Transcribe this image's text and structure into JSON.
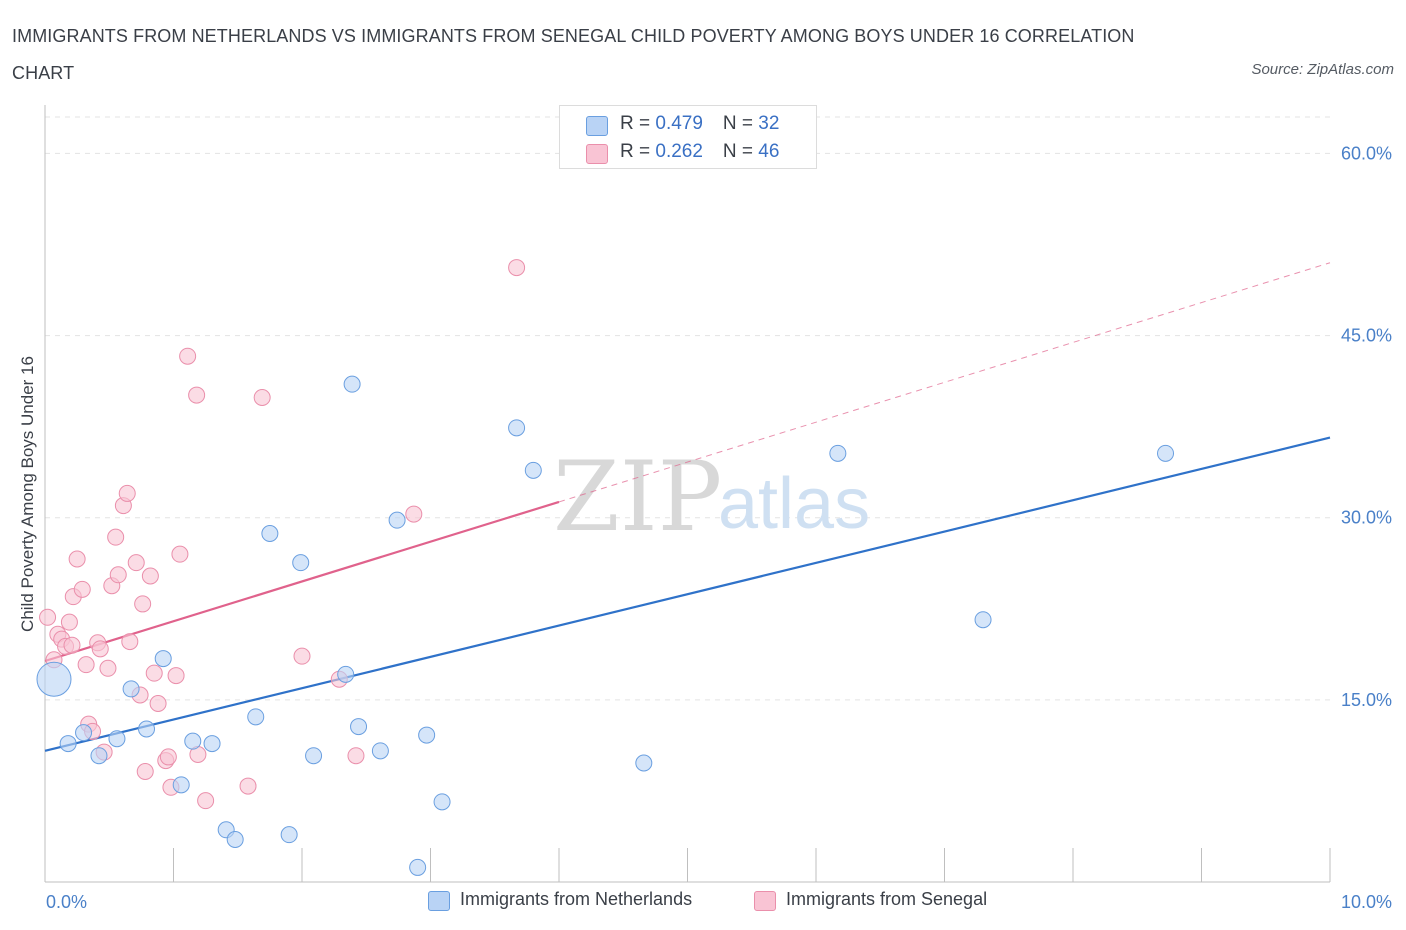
{
  "title": "IMMIGRANTS FROM NETHERLANDS VS IMMIGRANTS FROM SENEGAL CHILD POVERTY AMONG BOYS UNDER 16 CORRELATION CHART",
  "source": "Source: ZipAtlas.com",
  "watermark": {
    "zip": "ZIP",
    "atlas": "atlas"
  },
  "colors": {
    "netherlands_fill": "#b9d3f5",
    "netherlands_stroke": "#6a9fe0",
    "netherlands_line": "#2f72c9",
    "senegal_fill": "#f9c4d4",
    "senegal_stroke": "#ea8fab",
    "senegal_line": "#e0628c",
    "grid": "#e3e3e3",
    "axis_text": "#4a80c8"
  },
  "legend": {
    "rows": [
      {
        "r_label": "R = ",
        "r_value": "0.479",
        "n_label": "N = ",
        "n_value": "32"
      },
      {
        "r_label": "R = ",
        "r_value": "0.262",
        "n_label": "N = ",
        "n_value": "46"
      }
    ]
  },
  "bottom_legend": [
    "Immigrants from Netherlands",
    "Immigrants from Senegal"
  ],
  "chart_data": {
    "type": "scatter",
    "ylabel": "Child Poverty Among Boys Under 16",
    "xlabel": "",
    "xlim": [
      0,
      10
    ],
    "ylim": [
      0,
      63
    ],
    "x_tick_labels": [
      "0.0%",
      "10.0%"
    ],
    "y_ticks": [
      15,
      30,
      45,
      60
    ],
    "y_tick_labels": [
      "15.0%",
      "30.0%",
      "45.0%",
      "60.0%"
    ],
    "grid": true,
    "legend_position": "top-center",
    "series": [
      {
        "name": "Immigrants from Netherlands",
        "R": 0.479,
        "N": 32,
        "trend": {
          "x": [
            0,
            10
          ],
          "y": [
            10.8,
            36.6
          ],
          "style": "solid"
        },
        "points": [
          {
            "x": 0.07,
            "y": 16.7,
            "size": "large"
          },
          {
            "x": 0.18,
            "y": 11.4
          },
          {
            "x": 0.3,
            "y": 12.3
          },
          {
            "x": 0.42,
            "y": 10.4
          },
          {
            "x": 0.56,
            "y": 11.8
          },
          {
            "x": 0.67,
            "y": 15.9
          },
          {
            "x": 0.79,
            "y": 12.6
          },
          {
            "x": 0.92,
            "y": 18.4
          },
          {
            "x": 1.06,
            "y": 8.0
          },
          {
            "x": 1.15,
            "y": 11.6
          },
          {
            "x": 1.3,
            "y": 11.4
          },
          {
            "x": 1.41,
            "y": 4.3
          },
          {
            "x": 1.48,
            "y": 3.5
          },
          {
            "x": 1.64,
            "y": 13.6
          },
          {
            "x": 1.75,
            "y": 28.7
          },
          {
            "x": 1.9,
            "y": 3.9
          },
          {
            "x": 1.99,
            "y": 26.3
          },
          {
            "x": 2.09,
            "y": 10.4
          },
          {
            "x": 2.34,
            "y": 17.1
          },
          {
            "x": 2.39,
            "y": 41.0
          },
          {
            "x": 2.44,
            "y": 12.8
          },
          {
            "x": 2.61,
            "y": 10.8
          },
          {
            "x": 2.74,
            "y": 29.8
          },
          {
            "x": 2.9,
            "y": 1.2
          },
          {
            "x": 2.97,
            "y": 12.1
          },
          {
            "x": 3.09,
            "y": 6.6
          },
          {
            "x": 3.67,
            "y": 37.4
          },
          {
            "x": 3.8,
            "y": 33.9
          },
          {
            "x": 4.66,
            "y": 9.8
          },
          {
            "x": 6.17,
            "y": 35.3
          },
          {
            "x": 7.3,
            "y": 21.6
          },
          {
            "x": 8.72,
            "y": 35.3
          }
        ]
      },
      {
        "name": "Immigrants from Senegal",
        "R": 0.262,
        "N": 46,
        "trend": {
          "x": [
            0,
            4.0
          ],
          "y": [
            18.2,
            31.3
          ],
          "style": "solid",
          "extension": {
            "x": [
              4.0,
              10
            ],
            "y": [
              31.3,
              51.0
            ],
            "style": "dashed"
          }
        },
        "points": [
          {
            "x": 0.02,
            "y": 21.8
          },
          {
            "x": 0.07,
            "y": 18.3
          },
          {
            "x": 0.1,
            "y": 20.4
          },
          {
            "x": 0.13,
            "y": 20.0
          },
          {
            "x": 0.16,
            "y": 19.4
          },
          {
            "x": 0.19,
            "y": 21.4
          },
          {
            "x": 0.21,
            "y": 19.5
          },
          {
            "x": 0.22,
            "y": 23.5
          },
          {
            "x": 0.25,
            "y": 26.6
          },
          {
            "x": 0.29,
            "y": 24.1
          },
          {
            "x": 0.32,
            "y": 17.9
          },
          {
            "x": 0.34,
            "y": 13.0
          },
          {
            "x": 0.37,
            "y": 12.4
          },
          {
            "x": 0.41,
            "y": 19.7
          },
          {
            "x": 0.43,
            "y": 19.2
          },
          {
            "x": 0.46,
            "y": 10.7
          },
          {
            "x": 0.49,
            "y": 17.6
          },
          {
            "x": 0.52,
            "y": 24.4
          },
          {
            "x": 0.55,
            "y": 28.4
          },
          {
            "x": 0.57,
            "y": 25.3
          },
          {
            "x": 0.61,
            "y": 31.0
          },
          {
            "x": 0.64,
            "y": 32.0
          },
          {
            "x": 0.66,
            "y": 19.8
          },
          {
            "x": 0.71,
            "y": 26.3
          },
          {
            "x": 0.74,
            "y": 15.4
          },
          {
            "x": 0.76,
            "y": 22.9
          },
          {
            "x": 0.78,
            "y": 9.1
          },
          {
            "x": 0.82,
            "y": 25.2
          },
          {
            "x": 0.85,
            "y": 17.2
          },
          {
            "x": 0.88,
            "y": 14.7
          },
          {
            "x": 0.94,
            "y": 10.0
          },
          {
            "x": 0.96,
            "y": 10.3
          },
          {
            "x": 0.98,
            "y": 7.8
          },
          {
            "x": 1.02,
            "y": 17.0
          },
          {
            "x": 1.05,
            "y": 27.0
          },
          {
            "x": 1.11,
            "y": 43.3
          },
          {
            "x": 1.18,
            "y": 40.1
          },
          {
            "x": 1.19,
            "y": 10.5
          },
          {
            "x": 1.25,
            "y": 6.7
          },
          {
            "x": 1.58,
            "y": 7.9
          },
          {
            "x": 1.69,
            "y": 39.9
          },
          {
            "x": 2.0,
            "y": 18.6
          },
          {
            "x": 2.29,
            "y": 16.7
          },
          {
            "x": 2.42,
            "y": 10.4
          },
          {
            "x": 2.87,
            "y": 30.3
          },
          {
            "x": 3.67,
            "y": 50.6
          }
        ]
      }
    ]
  }
}
